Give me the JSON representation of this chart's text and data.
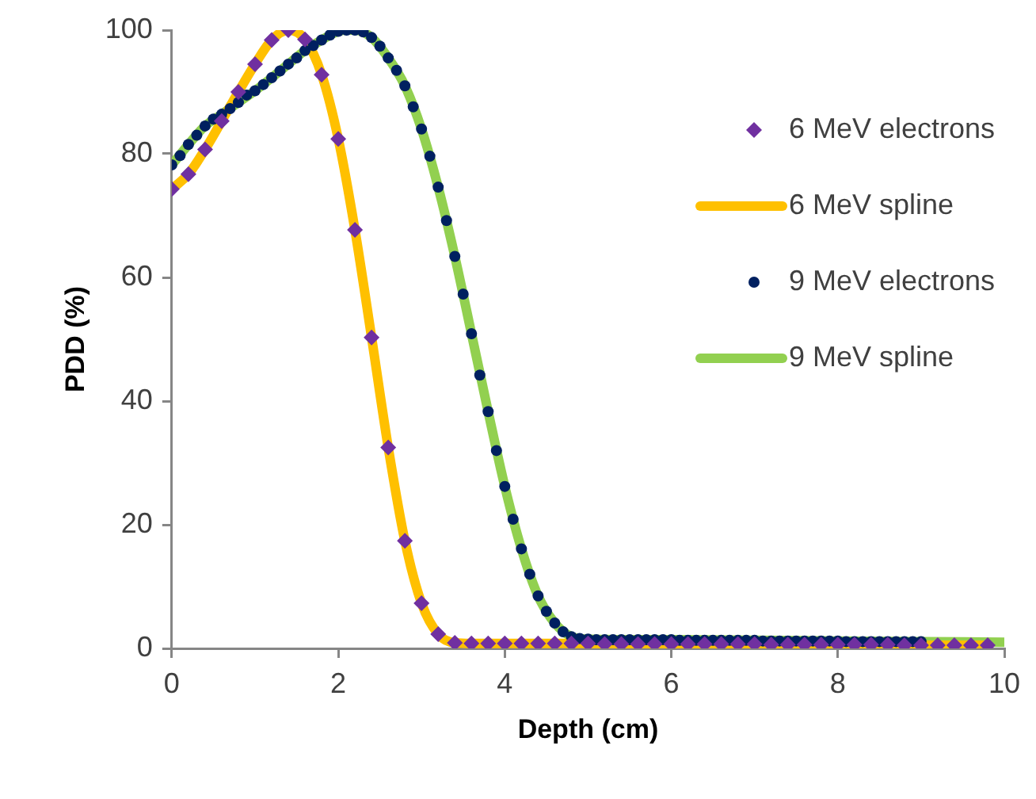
{
  "chart_data": {
    "type": "scatter",
    "xlabel": "Depth (cm)",
    "ylabel": "PDD (%)",
    "xlim": [
      0,
      10
    ],
    "xticks": [
      0,
      2,
      4,
      6,
      8,
      10
    ],
    "ylim": [
      0,
      100
    ],
    "yticks": [
      0,
      20,
      40,
      60,
      80,
      100
    ],
    "grid": false,
    "legend": "right",
    "series": [
      {
        "name": "6 MeV electrons",
        "type": "scatter",
        "marker": "diamond",
        "color": "#7030a0",
        "x": [
          0,
          0.2,
          0.4,
          0.6,
          0.8,
          1,
          1.2,
          1.4,
          1.6,
          1.8,
          2,
          2.2,
          2.4,
          2.6,
          2.8,
          3,
          3.2,
          3.4,
          3.6,
          3.8,
          4,
          4.2,
          4.4,
          4.6,
          4.8,
          5,
          5.2,
          5.4,
          5.6,
          5.8,
          6,
          6.2,
          6.4,
          6.6,
          6.8,
          7,
          7.2,
          7.4,
          7.6,
          7.8,
          8,
          8.2,
          8.4,
          8.6,
          8.8,
          9,
          9.2,
          9.4,
          9.6,
          9.8
        ],
        "values": [
          74.3,
          76.7,
          80.7,
          85.3,
          90,
          94.5,
          98.4,
          100,
          98.5,
          92.8,
          82.4,
          67.7,
          50.3,
          32.5,
          17.4,
          7.3,
          2.3,
          0.9,
          0.8,
          0.8,
          0.8,
          0.8,
          0.8,
          0.8,
          0.8,
          0.8,
          0.7,
          0.7,
          0.7,
          0.7,
          0.7,
          0.7,
          0.7,
          0.7,
          0.7,
          0.7,
          0.6,
          0.6,
          0.6,
          0.6,
          0.6,
          0.6,
          0.6,
          0.6,
          0.5,
          0.5,
          0.5,
          0.5,
          0.5,
          0.5
        ]
      },
      {
        "name": "6 MeV spline",
        "type": "line",
        "marker": "none",
        "color": "#ffc000",
        "x": [
          0,
          0.2,
          0.4,
          0.6,
          0.8,
          1,
          1.2,
          1.4,
          1.6,
          1.8,
          2,
          2.2,
          2.4,
          2.6,
          2.8,
          3,
          3.2,
          3.4,
          3.6,
          3.8,
          4,
          4.2,
          4.4,
          4.6,
          4.8,
          5,
          5.2,
          5.4,
          5.6,
          5.8,
          6,
          6.2,
          6.4,
          6.6,
          6.8,
          7,
          7.2,
          7.4,
          7.6,
          7.8,
          8,
          8.2,
          8.4,
          8.6,
          8.8,
          9,
          9.2,
          9.4,
          9.6,
          9.8
        ],
        "values": [
          74.3,
          76.7,
          80.7,
          85.3,
          90,
          94.5,
          98.4,
          100,
          98.5,
          92.8,
          82.4,
          67.7,
          50.3,
          32.5,
          17.4,
          7.3,
          2.3,
          0.9,
          0.8,
          0.8,
          0.8,
          0.8,
          0.8,
          0.8,
          0.8,
          0.8,
          0.7,
          0.7,
          0.7,
          0.7,
          0.7,
          0.7,
          0.7,
          0.7,
          0.7,
          0.7,
          0.6,
          0.6,
          0.6,
          0.6,
          0.6,
          0.6,
          0.6,
          0.6,
          0.5,
          0.5,
          0.5,
          0.5,
          0.5,
          0.5
        ]
      },
      {
        "name": "9 MeV electrons",
        "type": "scatter",
        "marker": "circle",
        "color": "#002060",
        "x": [
          0,
          0.1,
          0.2,
          0.3,
          0.4,
          0.5,
          0.6,
          0.7,
          0.8,
          0.9,
          1,
          1.1,
          1.2,
          1.3,
          1.4,
          1.5,
          1.6,
          1.7,
          1.8,
          1.9,
          2,
          2.1,
          2.2,
          2.3,
          2.4,
          2.5,
          2.6,
          2.7,
          2.8,
          2.9,
          3,
          3.1,
          3.2,
          3.3,
          3.4,
          3.5,
          3.6,
          3.7,
          3.8,
          3.9,
          4,
          4.1,
          4.2,
          4.3,
          4.4,
          4.5,
          4.6,
          4.7,
          4.8,
          4.9,
          5,
          5.1,
          5.2,
          5.3,
          5.4,
          5.5,
          5.6,
          5.7,
          5.8,
          5.9,
          6,
          6.1,
          6.2,
          6.3,
          6.4,
          6.5,
          6.6,
          6.7,
          6.8,
          6.9,
          7,
          7.1,
          7.2,
          7.3,
          7.4,
          7.5,
          7.6,
          7.7,
          7.8,
          7.9,
          8,
          8.1,
          8.2,
          8.3,
          8.4,
          8.5,
          8.6,
          8.7,
          8.8,
          8.9,
          9
        ],
        "values": [
          78.2,
          79.7,
          81.5,
          83,
          84.5,
          85.6,
          86.4,
          87.3,
          88.3,
          89.5,
          90.2,
          91.2,
          92.3,
          93.4,
          94.5,
          95.5,
          96.7,
          97.5,
          98.4,
          99.2,
          99.8,
          100,
          100,
          99.7,
          98.8,
          97.4,
          95.5,
          93.5,
          91,
          87.6,
          84,
          79.6,
          74.6,
          69.2,
          63.4,
          57.3,
          50.9,
          44.2,
          38.3,
          32,
          26.2,
          20.9,
          16.1,
          12,
          8.5,
          6,
          4.1,
          2.7,
          1.9,
          1.6,
          1.5,
          1.4,
          1.4,
          1.4,
          1.4,
          1.4,
          1.4,
          1.4,
          1.4,
          1.4,
          1.4,
          1.3,
          1.3,
          1.3,
          1.3,
          1.3,
          1.3,
          1.3,
          1.3,
          1.3,
          1.3,
          1.2,
          1.2,
          1.2,
          1.2,
          1.2,
          1.2,
          1.2,
          1.2,
          1.2,
          1.2,
          1.1,
          1.1,
          1.1,
          1.1,
          1.1,
          1.1,
          1.1,
          1.1,
          1.1,
          1.1
        ]
      },
      {
        "name": "9 MeV spline",
        "type": "line",
        "marker": "none",
        "color": "#92d050",
        "x": [
          0,
          0.2,
          0.4,
          0.6,
          0.8,
          1,
          1.2,
          1.4,
          1.6,
          1.8,
          2,
          2.1,
          2.2,
          2.4,
          2.6,
          2.8,
          3,
          3.2,
          3.4,
          3.6,
          3.8,
          4,
          4.2,
          4.4,
          4.6,
          4.8,
          5,
          5.5,
          6,
          7,
          8,
          9,
          10
        ],
        "values": [
          78.2,
          81.5,
          84.5,
          86.4,
          88.3,
          90.2,
          92.3,
          94.5,
          96.7,
          98.4,
          99.8,
          100,
          100,
          98.8,
          95.5,
          91,
          84,
          74.6,
          63.4,
          50.9,
          38.3,
          26.2,
          16.1,
          8.5,
          4.1,
          1.9,
          1.5,
          1.4,
          1.4,
          1.3,
          1.2,
          1.1,
          1
        ]
      }
    ]
  }
}
